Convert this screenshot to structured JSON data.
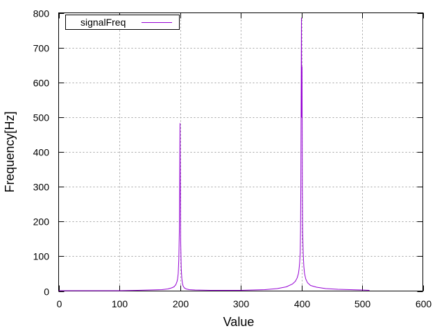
{
  "chart_data": {
    "type": "line",
    "title": "",
    "xlabel": "Value",
    "ylabel": "Frequency[Hz]",
    "xlim": [
      0,
      600
    ],
    "ylim": [
      0,
      800
    ],
    "xticks": [
      0,
      100,
      200,
      300,
      400,
      500,
      600
    ],
    "yticks": [
      0,
      100,
      200,
      300,
      400,
      500,
      600,
      700,
      800
    ],
    "grid": true,
    "legend_position": "top-left",
    "series": [
      {
        "name": "signalFreq",
        "color": "#9400d3",
        "x": [
          0,
          50,
          100,
          130,
          150,
          170,
          180,
          186,
          190,
          193,
          195,
          196,
          197,
          198,
          199,
          199.5,
          200,
          200.5,
          201,
          202,
          203,
          204,
          205,
          207,
          210,
          215,
          225,
          250,
          300,
          340,
          360,
          375,
          385,
          390,
          393,
          395,
          396,
          397,
          398,
          398.5,
          399,
          399.5,
          400,
          400.5,
          401,
          401.5,
          402,
          403,
          404,
          405,
          407,
          410,
          415,
          425,
          440,
          460,
          480,
          500,
          512
        ],
        "y": [
          1,
          1,
          1,
          2,
          3,
          4,
          6,
          9,
          12,
          18,
          27,
          35,
          50,
          90,
          185,
          300,
          482,
          300,
          150,
          65,
          35,
          22,
          15,
          9,
          6,
          4,
          3,
          2,
          2,
          4,
          7,
          12,
          20,
          28,
          38,
          50,
          62,
          80,
          110,
          175,
          300,
          550,
          785,
          500,
          645,
          300,
          170,
          105,
          70,
          52,
          35,
          24,
          16,
          11,
          7,
          5,
          4,
          3,
          2
        ]
      }
    ]
  }
}
